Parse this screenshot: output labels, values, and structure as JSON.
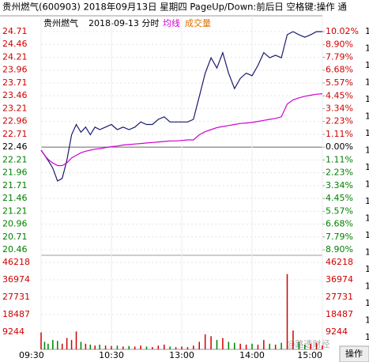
{
  "header": {
    "text": "贵州燃气(600903) 2018年09月13日 星期四 PageUp/Down:前后日 空格键:操作 通"
  },
  "side_digits": [
    "1",
    "1",
    "1",
    "1",
    "1",
    "1",
    "1",
    "1",
    "1",
    "1",
    "1",
    "1",
    "1",
    "1",
    "1",
    "1",
    "1",
    "1",
    "1"
  ],
  "button": "操作",
  "watermark": "@路透财经",
  "chart_data": [
    {
      "type": "line",
      "title": "贵州燃气",
      "subtitle": "2018-09-13 分时",
      "x": [
        0,
        3,
        6,
        10,
        14,
        18,
        22,
        26,
        30,
        34,
        38,
        42,
        46,
        50,
        55,
        60,
        65,
        70,
        75,
        80,
        85,
        90,
        95,
        100,
        105,
        110,
        115,
        120,
        125,
        130,
        135,
        140,
        145,
        150,
        155,
        160,
        165,
        170,
        175,
        180,
        185,
        190,
        195,
        200,
        205,
        210,
        215,
        220,
        225,
        230,
        235,
        240
      ],
      "xlim": [
        0,
        240
      ],
      "xticks": [
        {
          "value": 0,
          "label": "09:30"
        },
        {
          "value": 60,
          "label": "10:30"
        },
        {
          "value": 120,
          "label": "13:00"
        },
        {
          "value": 180,
          "label": "14:00"
        },
        {
          "value": 240,
          "label": "15:00"
        }
      ],
      "ylim": [
        20.46,
        24.71
      ],
      "yticks": [
        24.71,
        24.46,
        24.21,
        23.96,
        23.71,
        23.46,
        23.21,
        22.96,
        22.71,
        22.46,
        22.21,
        21.96,
        21.71,
        21.46,
        21.21,
        20.96,
        20.71,
        20.46
      ],
      "y2lim": [
        -8.9,
        10.02
      ],
      "y2ticks": [
        {
          "value": 10.02,
          "label": "10.02%"
        },
        {
          "value": 8.9,
          "label": "8.90%"
        },
        {
          "value": 7.79,
          "label": "7.79%"
        },
        {
          "value": 6.68,
          "label": "6.68%"
        },
        {
          "value": 5.57,
          "label": "5.57%"
        },
        {
          "value": 4.45,
          "label": "4.45%"
        },
        {
          "value": 3.34,
          "label": "3.34%"
        },
        {
          "value": 2.23,
          "label": "2.23%"
        },
        {
          "value": 1.11,
          "label": "1.11%"
        },
        {
          "value": 0,
          "label": "0.00%"
        },
        {
          "value": -1.11,
          "label": "1.11%"
        },
        {
          "value": -2.23,
          "label": "2.23%"
        },
        {
          "value": -3.34,
          "label": "3.34%"
        },
        {
          "value": -4.45,
          "label": "4.45%"
        },
        {
          "value": -5.57,
          "label": "5.57%"
        },
        {
          "value": -6.68,
          "label": "6.68%"
        },
        {
          "value": -7.79,
          "label": "7.79%"
        },
        {
          "value": -8.9,
          "label": "8.90%"
        }
      ],
      "series": [
        {
          "color": "#1a1a6e",
          "values": [
            22.4,
            22.3,
            22.2,
            22.05,
            21.8,
            21.85,
            22.2,
            22.7,
            22.9,
            22.75,
            22.85,
            22.7,
            22.85,
            22.8,
            22.85,
            22.9,
            22.8,
            22.85,
            22.8,
            22.85,
            22.95,
            22.9,
            22.9,
            23.0,
            23.05,
            22.95,
            22.95,
            22.95,
            22.95,
            23.0,
            23.45,
            23.9,
            24.2,
            24.0,
            24.3,
            23.9,
            23.6,
            23.8,
            23.9,
            23.85,
            24.05,
            24.3,
            24.2,
            24.25,
            24.2,
            24.65,
            24.71,
            24.65,
            24.6,
            24.65,
            24.71,
            24.71
          ]
        },
        {
          "name": "均线",
          "color": "#d000d0",
          "values": [
            22.4,
            22.3,
            22.22,
            22.15,
            22.1,
            22.1,
            22.15,
            22.25,
            22.3,
            22.35,
            22.38,
            22.4,
            22.42,
            22.43,
            22.45,
            22.47,
            22.48,
            22.5,
            22.51,
            22.52,
            22.53,
            22.54,
            22.55,
            22.56,
            22.57,
            22.58,
            22.58,
            22.59,
            22.6,
            22.6,
            22.7,
            22.76,
            22.8,
            22.84,
            22.86,
            22.88,
            22.9,
            22.92,
            22.93,
            22.94,
            22.96,
            22.98,
            23.0,
            23.02,
            23.05,
            23.3,
            23.38,
            23.42,
            23.45,
            23.47,
            23.49,
            23.5
          ]
        }
      ]
    },
    {
      "type": "bar",
      "title": "成交量",
      "color": "#e07000",
      "x": [
        0,
        3,
        6,
        10,
        14,
        18,
        22,
        26,
        30,
        34,
        38,
        42,
        46,
        50,
        55,
        60,
        65,
        70,
        75,
        80,
        85,
        90,
        95,
        100,
        105,
        110,
        115,
        120,
        125,
        130,
        135,
        140,
        145,
        150,
        155,
        160,
        165,
        170,
        175,
        180,
        185,
        190,
        195,
        200,
        205,
        210,
        215,
        220,
        225,
        230,
        235,
        240
      ],
      "ylim": [
        0,
        46218
      ],
      "yticks": [
        46218,
        36974,
        27731,
        18487,
        9244
      ],
      "values": [
        9000,
        4000,
        3000,
        5000,
        4500,
        3000,
        6000,
        5000,
        9500,
        4000,
        3000,
        2500,
        2000,
        2500,
        2000,
        1800,
        2000,
        1500,
        1800,
        1500,
        2000,
        1500,
        1200,
        2000,
        2500,
        1500,
        1200,
        1500,
        1200,
        2000,
        4000,
        8000,
        7000,
        5000,
        6000,
        4000,
        3500,
        3000,
        2500,
        3000,
        2500,
        5000,
        3000,
        2500,
        3500,
        40000,
        10000,
        4000,
        2500,
        3000,
        3500,
        2000
      ]
    }
  ]
}
